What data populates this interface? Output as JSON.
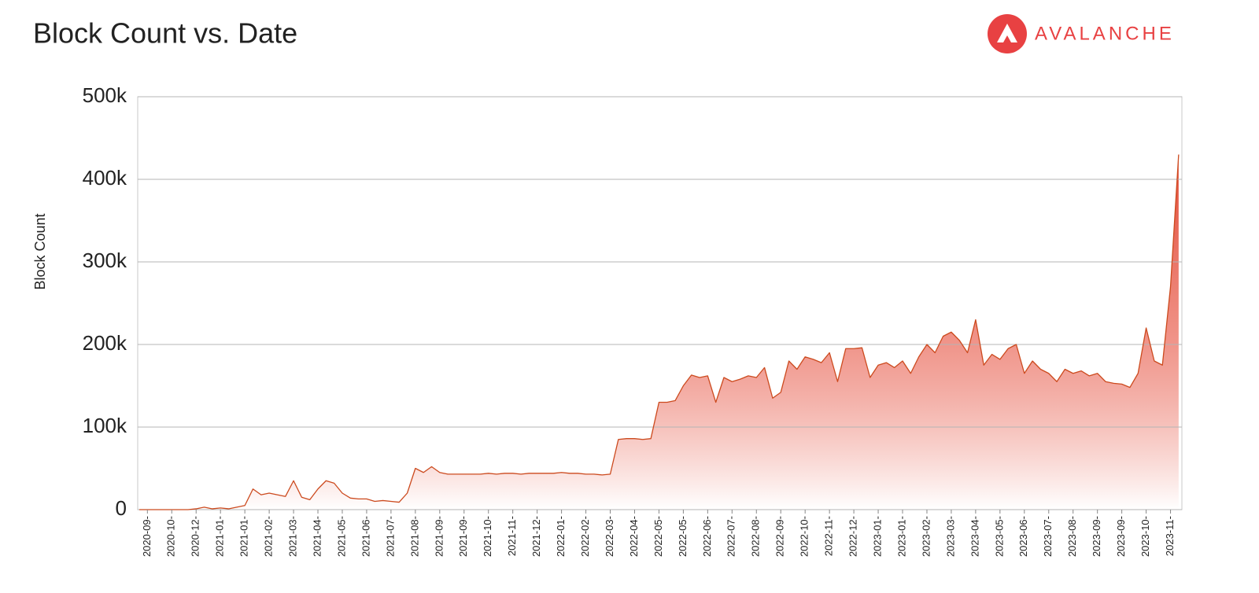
{
  "chart_data": {
    "type": "area",
    "title": "Block Count vs. Date",
    "logo": "AVALANCHE",
    "y_label": "Block Count",
    "color": "#cc4a1e",
    "categories": [
      null,
      "2020-09-",
      null,
      null,
      "2020-10-",
      null,
      null,
      "2020-12-",
      null,
      null,
      "2021-01-",
      null,
      null,
      "2021-01-",
      null,
      null,
      "2021-02-",
      null,
      null,
      "2021-03-",
      null,
      null,
      "2021-04-",
      null,
      null,
      "2021-05-",
      null,
      null,
      "2021-06-",
      null,
      null,
      "2021-07-",
      null,
      null,
      "2021-08-",
      null,
      null,
      "2021-09-",
      null,
      null,
      "2021-09-",
      null,
      null,
      "2021-10-",
      null,
      null,
      "2021-11-",
      null,
      null,
      "2021-12-",
      null,
      null,
      "2022-01-",
      null,
      null,
      "2022-02-",
      null,
      null,
      "2022-03-",
      null,
      null,
      "2022-04-",
      null,
      null,
      "2022-05-",
      null,
      null,
      "2022-05-",
      null,
      null,
      "2022-06-",
      null,
      null,
      "2022-07-",
      null,
      null,
      "2022-08-",
      null,
      null,
      "2022-09-",
      null,
      null,
      "2022-10-",
      null,
      null,
      "2022-11-",
      null,
      null,
      "2022-12-",
      null,
      null,
      "2023-01-",
      null,
      null,
      "2023-01-",
      null,
      null,
      "2023-02-",
      null,
      null,
      "2023-03-",
      null,
      null,
      "2023-04-",
      null,
      null,
      "2023-05-",
      null,
      null,
      "2023-06-",
      null,
      null,
      "2023-07-",
      null,
      null,
      "2023-08-",
      null,
      null,
      "2023-09-",
      null,
      null,
      "2023-09-",
      null,
      null,
      "2023-10-",
      null,
      null,
      "2023-11-",
      null
    ],
    "values": [
      0,
      0,
      0,
      0,
      0,
      0,
      0,
      1000,
      3000,
      1000,
      2000,
      1000,
      3000,
      5000,
      25000,
      18000,
      20000,
      18000,
      16000,
      35000,
      15000,
      12000,
      25000,
      35000,
      32000,
      20000,
      14000,
      13000,
      13000,
      10000,
      11000,
      10000,
      9000,
      20000,
      50000,
      45000,
      52000,
      45000,
      43000,
      43000,
      43000,
      43000,
      43000,
      44000,
      43000,
      44000,
      44000,
      43000,
      44000,
      44000,
      44000,
      44000,
      45000,
      44000,
      44000,
      43000,
      43000,
      42000,
      43000,
      85000,
      86000,
      86000,
      85000,
      86000,
      130000,
      130000,
      132000,
      150000,
      163000,
      160000,
      162000,
      130000,
      160000,
      155000,
      158000,
      162000,
      160000,
      172000,
      135000,
      142000,
      180000,
      170000,
      185000,
      182000,
      178000,
      190000,
      155000,
      195000,
      195000,
      196000,
      160000,
      175000,
      178000,
      172000,
      180000,
      165000,
      185000,
      200000,
      190000,
      210000,
      215000,
      205000,
      190000,
      230000,
      175000,
      188000,
      182000,
      195000,
      200000,
      165000,
      180000,
      170000,
      165000,
      155000,
      170000,
      165000,
      168000,
      162000,
      165000,
      155000,
      153000,
      152000,
      148000,
      165000,
      220000,
      180000,
      175000,
      270000,
      430000
    ],
    "ylim": [
      0,
      500000
    ],
    "yticks": [
      0,
      {
        "value": 100000,
        "label": "100k"
      },
      {
        "value": 200000,
        "label": "200k"
      },
      {
        "value": 300000,
        "label": "300k"
      },
      {
        "value": 400000,
        "label": "400k"
      },
      {
        "value": 500000,
        "label": "500k"
      }
    ],
    "grid": true
  }
}
